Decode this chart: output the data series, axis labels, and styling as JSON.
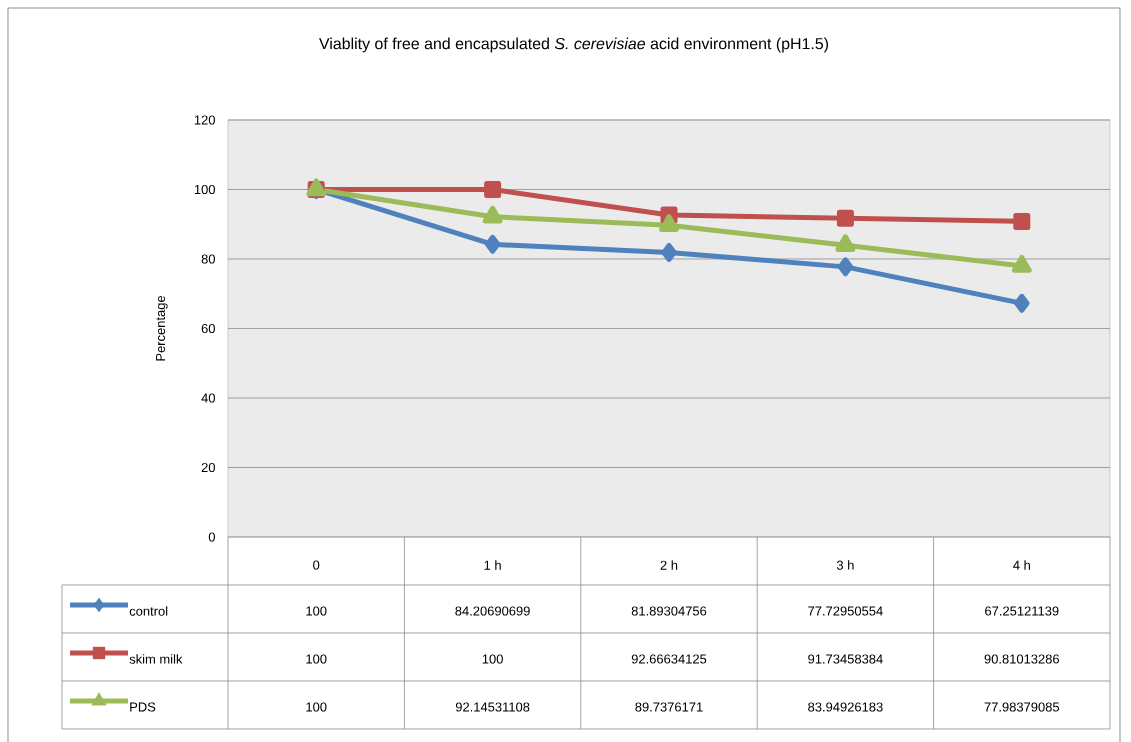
{
  "chart_data": {
    "type": "line",
    "title": "Viablity of free and encapsulated *S. cerevisiae* acid environment (pH1.5)",
    "ylabel": "Percentage",
    "categories": [
      "0",
      "1 h",
      "2 h",
      "3 h",
      "4 h"
    ],
    "series": [
      {
        "name": "control",
        "color": "#4f81bd",
        "marker": "diamond",
        "values": [
          100,
          84.20690699,
          81.89304756,
          77.72950554,
          67.25121139
        ]
      },
      {
        "name": "skim milk",
        "color": "#c0504d",
        "marker": "square",
        "values": [
          100,
          100,
          92.66634125,
          91.73458384,
          90.81013286
        ]
      },
      {
        "name": "PDS",
        "color": "#9bbb59",
        "marker": "triangle",
        "values": [
          100,
          92.14531108,
          89.7376171,
          83.94926183,
          77.98379085
        ]
      }
    ],
    "ylim": [
      0,
      120
    ],
    "yticks": [
      0,
      20,
      40,
      60,
      80,
      100,
      120
    ],
    "grid": "y",
    "legend": "bottom",
    "data_labels": true,
    "line_style": "solid"
  }
}
